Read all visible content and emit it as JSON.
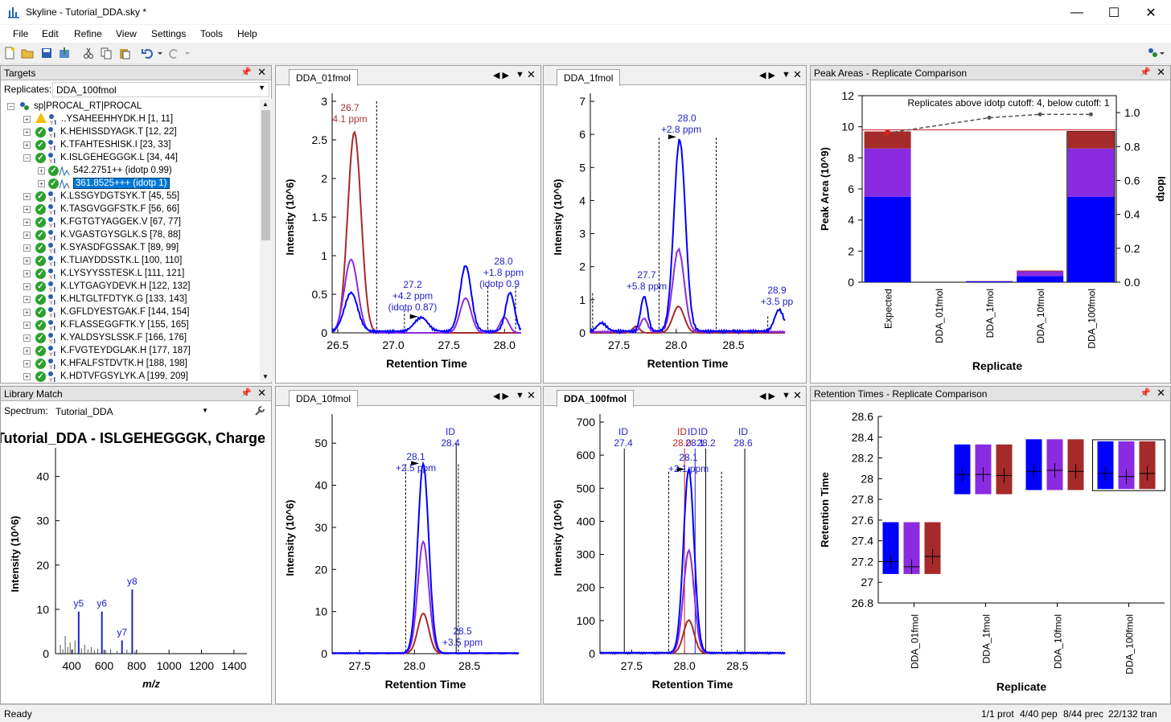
{
  "window": {
    "title": "Skyline - Tutorial_DDA.sky *",
    "minimize": "—",
    "maximize": "☐",
    "close": "✕"
  },
  "menu": [
    "File",
    "Edit",
    "Refine",
    "View",
    "Settings",
    "Tools",
    "Help"
  ],
  "targets": {
    "title": "Targets",
    "replicates_label": "Replicates:",
    "replicate": "DDA_100fmol",
    "root": "sp|PROCAL_RT|PROCAL",
    "peptides": [
      "..YSAHEEHHYDK.H [1, 11]",
      "K.HEHISSDYAGK.T [12, 22]",
      "K.TFAHTESHISK.I [23, 33]",
      "K.ISLGEHEGGGK.L [34, 44]",
      "K.LSSGYDGTSYK.T [45, 55]",
      "K.TASGVGGFSTK.F [56, 66]",
      "K.FGTGTYAGGEK.V [67, 77]",
      "K.VGASTGYSGLK.S [78, 88]",
      "K.SYASDFGSSAK.T [89, 99]",
      "K.TLIAYDDSSTK.L [100, 110]",
      "K.LYSYYSSTESK.L [111, 121]",
      "K.LYTGAGYDEVK.H [122, 132]",
      "K.HLTGLTFDTYK.G [133, 143]",
      "K.GFLDYESTGAK.F [144, 154]",
      "K.FLASSEGGFTK.Y [155, 165]",
      "K.YALDSYSLSSK.F [166, 176]",
      "K.FVGTEYDGLAK.H [177, 187]",
      "K.HFALFSTDVTK.H [188, 198]",
      "K.HDTVFGSYLYK.A [199, 209]"
    ],
    "precursors": [
      "542.2751++ (idotp 0.99)",
      "361.8525+++ (idotp 1)"
    ]
  },
  "library": {
    "title": "Library Match",
    "spectrum_label": "Spectrum:",
    "spectrum": "Tutorial_DDA",
    "plot_title": "Tutorial_DDA - ISLGEHEGGGK, Charge",
    "ylabel": "Intensity (10^6)",
    "xlabel": "m/z",
    "xticks": [
      "400",
      "600",
      "800",
      "1000",
      "1200",
      "1400"
    ],
    "yticks": [
      "0",
      "10",
      "20",
      "30",
      "40"
    ],
    "ions": [
      {
        "label": "y5",
        "mz": 443,
        "intensity": 9.5
      },
      {
        "label": "y6",
        "mz": 586,
        "intensity": 9.5
      },
      {
        "label": "y7",
        "mz": 710,
        "intensity": 3
      },
      {
        "label": "y8",
        "mz": 773,
        "intensity": 14.5
      }
    ]
  },
  "chromatograms": [
    {
      "tab": "DDA_01fmol",
      "ylabel": "Intensity (10^6)",
      "xlabel": "Retention Time",
      "yticks": [
        "0",
        "0.5",
        "1",
        "1.5",
        "2",
        "2.5",
        "3"
      ],
      "xticks": [
        "26.5",
        "27.0",
        "27.5",
        "28.0"
      ],
      "annotations": [
        {
          "text": "26.7",
          "color": "#a33"
        },
        {
          "text": "4.1 ppm",
          "color": "#a33"
        },
        {
          "text": "27.2",
          "color": "#22c"
        },
        {
          "text": "+4.2 ppm",
          "color": "#22c"
        },
        {
          "text": "(idotp 0.87)",
          "color": "#22c"
        },
        {
          "text": "28.0",
          "color": "#22c"
        },
        {
          "text": "+1.8 ppm",
          "color": "#22c"
        },
        {
          "text": "(idotp 0.9",
          "color": "#22c"
        }
      ]
    },
    {
      "tab": "DDA_1fmol",
      "ylabel": "Intensity (10^6)",
      "xlabel": "Retention Time",
      "yticks": [
        "0",
        "1",
        "2",
        "3",
        "4",
        "5",
        "6",
        "7"
      ],
      "xticks": [
        "27.5",
        "28.0",
        "28.5"
      ],
      "annotations": [
        {
          "text": "28.0",
          "color": "#22c"
        },
        {
          "text": "+2.8 ppm",
          "color": "#22c"
        },
        {
          "text": "27.7",
          "color": "#22c"
        },
        {
          "text": "+5.8 ppm",
          "color": "#22c"
        },
        {
          "text": "28.9",
          "color": "#22c"
        },
        {
          "text": "+3.5 pp",
          "color": "#22c"
        }
      ]
    },
    {
      "tab": "DDA_10fmol",
      "ylabel": "Intensity (10^6)",
      "xlabel": "Retention Time",
      "yticks": [
        "0",
        "10",
        "20",
        "30",
        "40",
        "50"
      ],
      "xticks": [
        "27.5",
        "28.0",
        "28.5"
      ],
      "annotations": [
        {
          "text": "ID",
          "color": "#22c"
        },
        {
          "text": "28.4",
          "color": "#22c"
        },
        {
          "text": "28.1",
          "color": "#22c"
        },
        {
          "text": "+2.5 ppm",
          "color": "#22c"
        },
        {
          "text": "28.5",
          "color": "#22c"
        },
        {
          "text": "+3.5 ppm",
          "color": "#22c"
        }
      ]
    },
    {
      "tab": "DDA_100fmol",
      "ylabel": "Intensity (10^6)",
      "xlabel": "Retention Time",
      "yticks": [
        "0",
        "100",
        "200",
        "300",
        "400",
        "500",
        "600",
        "700"
      ],
      "xticks": [
        "27.5",
        "28.0",
        "28.5"
      ],
      "annotations": [
        {
          "text": "ID",
          "color": "#22c"
        },
        {
          "text": "27.4",
          "color": "#22c"
        },
        {
          "text": "ID",
          "color": "#c22"
        },
        {
          "text": "28.0",
          "color": "#c22"
        },
        {
          "text": "ID",
          "color": "#22c"
        },
        {
          "text": "28.1",
          "color": "#22c"
        },
        {
          "text": "ID",
          "color": "#22c"
        },
        {
          "text": "28.2",
          "color": "#22c"
        },
        {
          "text": "ID",
          "color": "#22c"
        },
        {
          "text": "28.6",
          "color": "#22c"
        },
        {
          "text": "28.1",
          "color": "#22c"
        },
        {
          "text": "+2.1 ppm",
          "color": "#22c"
        }
      ]
    }
  ],
  "peak_areas": {
    "title": "Peak Areas - Replicate Comparison",
    "ylabel": "Peak Area (10^9)",
    "ylabel2": "Idotp",
    "xlabel": "Replicate",
    "note": "Replicates above idotp cutoff: 4, below cutoff: 1",
    "yticks": [
      "0",
      "2",
      "4",
      "6",
      "8",
      "10",
      "12"
    ],
    "y2ticks": [
      "0.0",
      "0.2",
      "0.4",
      "0.6",
      "0.8",
      "1.0"
    ],
    "categories": [
      "Expected",
      "DDA_01fmol",
      "DDA_1fmol",
      "DDA_10fmol",
      "DDA_100fmol"
    ]
  },
  "retention_times": {
    "title": "Retention Times - Replicate Comparison",
    "ylabel": "Retention Time",
    "xlabel": "Replicate",
    "yticks": [
      "26.8",
      "27",
      "27.2",
      "27.4",
      "27.6",
      "27.8",
      "28",
      "28.2",
      "28.4",
      "28.6"
    ],
    "categories": [
      "DDA_01fmol",
      "DDA_1fmol",
      "DDA_10fmol",
      "DDA_100fmol"
    ]
  },
  "colors": {
    "blue": "#0000ff",
    "purple": "#8a2be2",
    "darkred": "#a52a2a",
    "select": "#0078d7"
  },
  "status": {
    "left": "Ready",
    "prot": "1/1 prot",
    "pep": "4/40 pep",
    "prec": "8/44 prec",
    "tran": "22/132 tran"
  },
  "chart_data": [
    {
      "type": "bar",
      "title": "Peak Areas - Replicate Comparison",
      "categories": [
        "Expected",
        "DDA_01fmol",
        "DDA_1fmol",
        "DDA_10fmol",
        "DDA_100fmol"
      ],
      "series": [
        {
          "values": [
            5.5,
            0,
            0.05,
            0.4,
            5.5
          ]
        },
        {
          "values": [
            3.1,
            0,
            0.02,
            0.3,
            3.1
          ]
        },
        {
          "values": [
            1.1,
            0,
            0.01,
            0.05,
            1.1
          ]
        }
      ],
      "idotp": [
        0.88,
        null,
        0.97,
        0.99,
        0.99
      ],
      "ylim": [
        0,
        12
      ],
      "y2lim": [
        0,
        1.1
      ]
    },
    {
      "type": "bar",
      "title": "Retention Times - Replicate Comparison",
      "categories": [
        "DDA_01fmol",
        "DDA_1fmol",
        "DDA_10fmol",
        "DDA_100fmol"
      ],
      "series": [
        {
          "values": [
            27.2,
            28.04,
            28.07,
            28.05
          ]
        },
        {
          "values": [
            27.15,
            28.04,
            28.08,
            28.02
          ]
        },
        {
          "values": [
            27.25,
            28.03,
            28.07,
            28.05
          ]
        }
      ],
      "range_low": [
        27.08,
        27.85,
        27.89,
        27.9
      ],
      "range_high": [
        27.58,
        28.33,
        28.38,
        28.36
      ],
      "ylim": [
        26.8,
        28.6
      ]
    }
  ]
}
